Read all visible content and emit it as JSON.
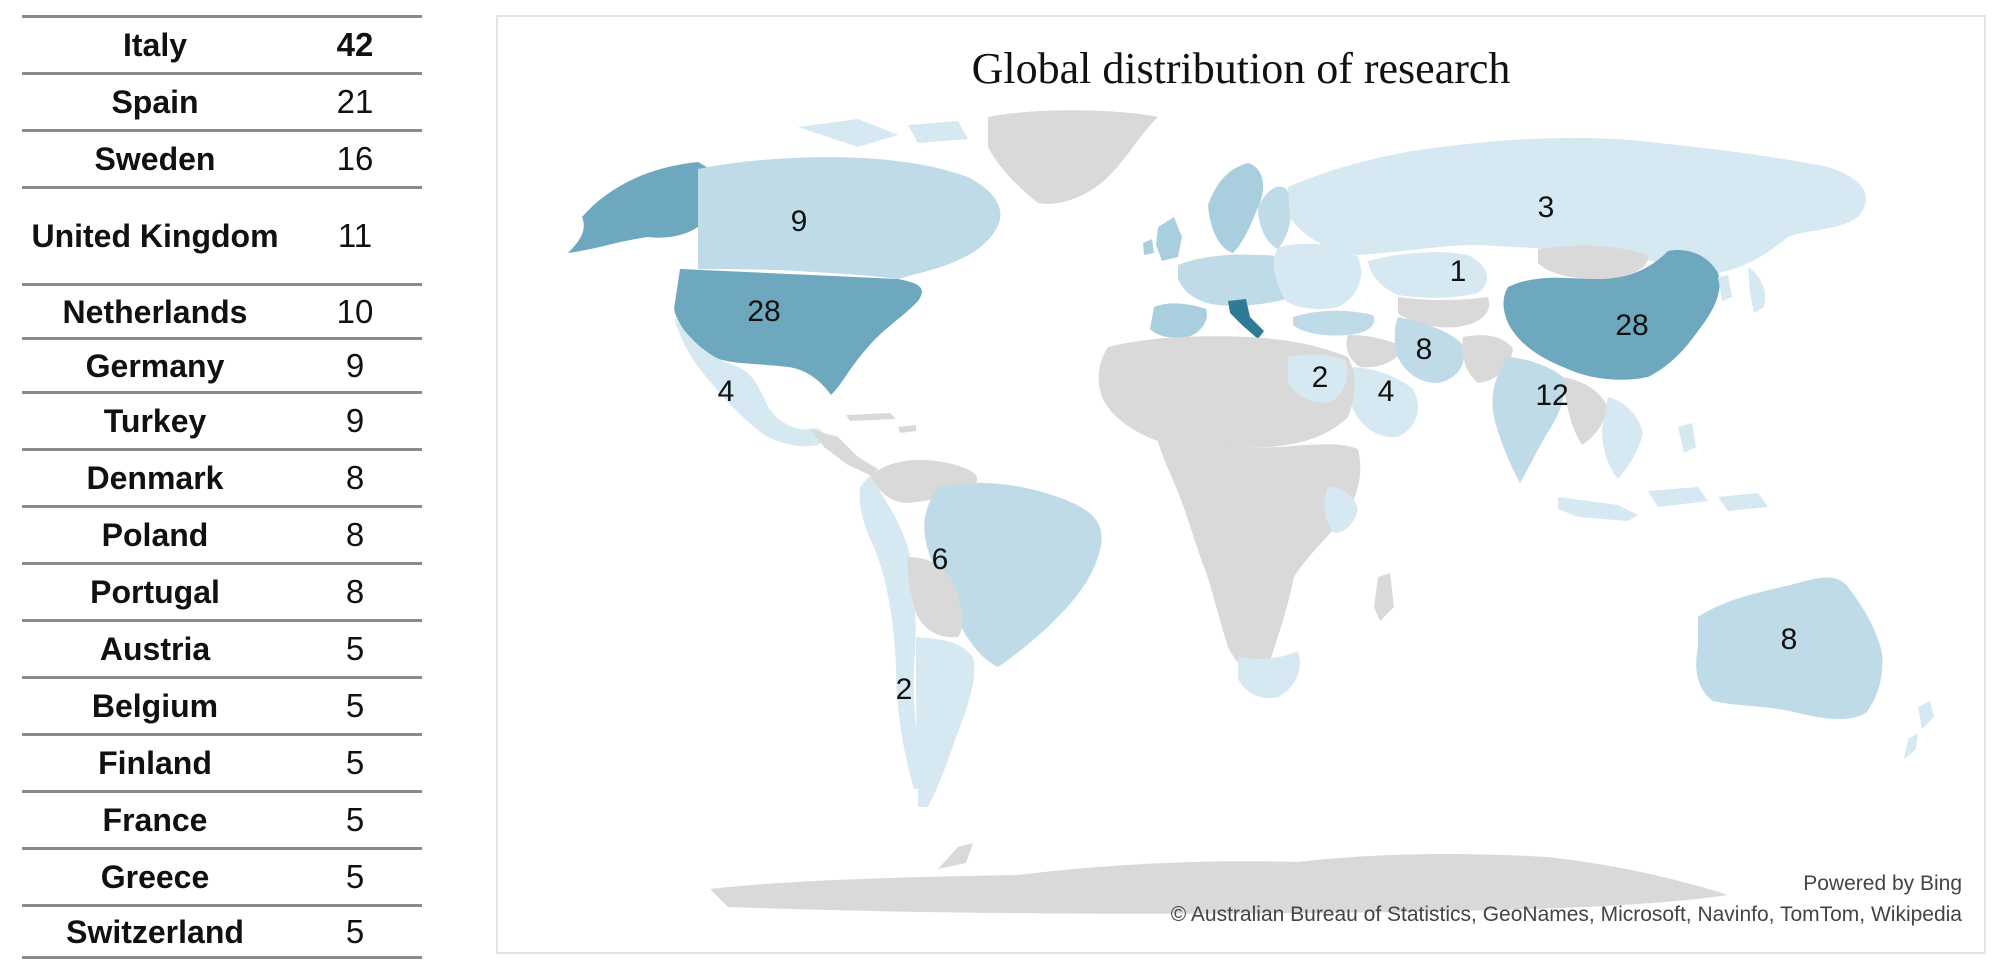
{
  "table": {
    "rows": [
      {
        "country": "Italy",
        "count": "42"
      },
      {
        "country": "Spain",
        "count": "21"
      },
      {
        "country": "Sweden",
        "count": "16"
      },
      {
        "country": "United Kingdom",
        "count": "11"
      },
      {
        "country": "Netherlands",
        "count": "10"
      },
      {
        "country": "Germany",
        "count": "9"
      },
      {
        "country": "Turkey",
        "count": "9"
      },
      {
        "country": "Denmark",
        "count": "8"
      },
      {
        "country": "Poland",
        "count": "8"
      },
      {
        "country": "Portugal",
        "count": "8"
      },
      {
        "country": "Austria",
        "count": "5"
      },
      {
        "country": "Belgium",
        "count": "5"
      },
      {
        "country": "Finland",
        "count": "5"
      },
      {
        "country": "France",
        "count": "5"
      },
      {
        "country": "Greece",
        "count": "5"
      },
      {
        "country": "Switzerland",
        "count": "5"
      }
    ]
  },
  "map": {
    "title": "Global distribution of research",
    "labels": {
      "russia": "3",
      "canada": "9",
      "kazakhstan": "1",
      "usa": "28",
      "china": "28",
      "iran": "8",
      "egypt": "2",
      "saudi_arabia": "4",
      "india": "12",
      "mexico": "4",
      "brazil": "6",
      "argentina": "2",
      "australia": "8"
    },
    "attribution_line1": "Powered by Bing",
    "attribution_line2": "© Australian Bureau of Statistics, GeoNames, Microsoft, Navinfo, TomTom, Wikipedia"
  },
  "colors": {
    "no_data": "#d9d9d9",
    "low": "#d6e8f1",
    "high": "#2f7b95"
  }
}
